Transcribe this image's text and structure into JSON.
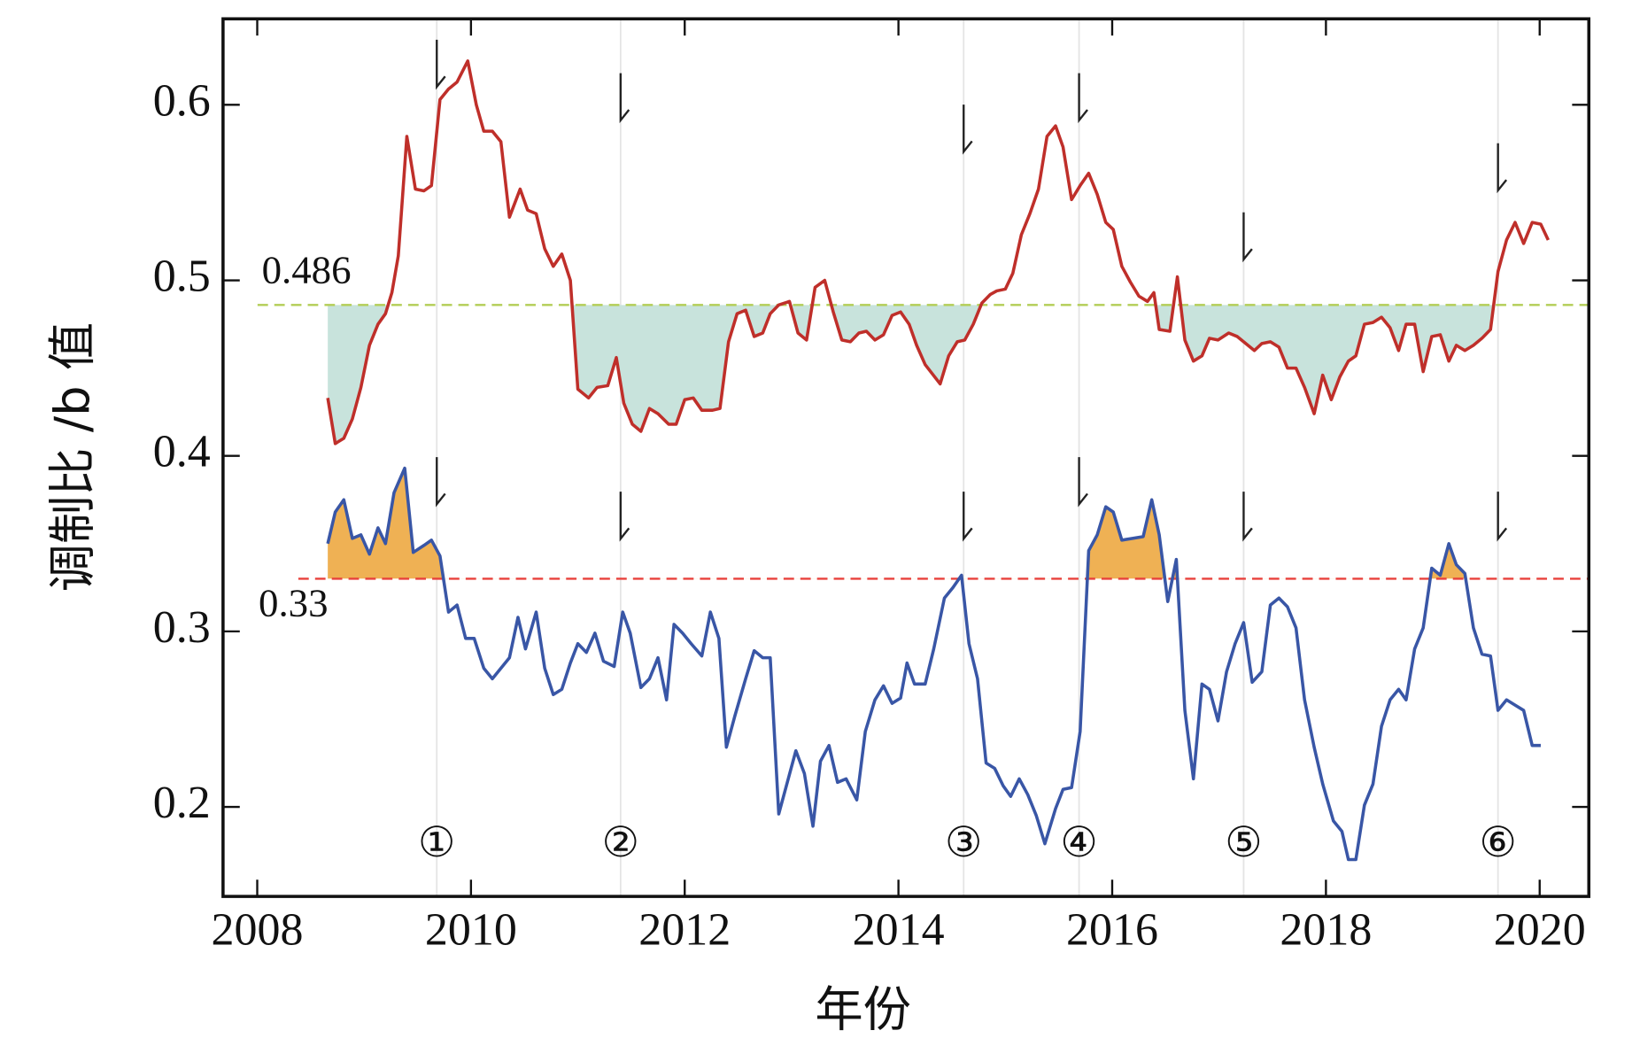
{
  "chart_data": {
    "type": "line",
    "xlabel": "年份",
    "ylabel": "调制比 /b 值",
    "xlim": [
      2007.68,
      2020.46
    ],
    "xticks": [
      2008,
      2010,
      2012,
      2014,
      2016,
      2018,
      2020
    ],
    "ylim": [
      0.149,
      0.649
    ],
    "yticks": [
      0.2,
      0.3,
      0.4,
      0.5,
      0.6
    ],
    "series": [
      {
        "color": "#bf2f2a",
        "x": [
          2008.66,
          2008.73,
          2008.81,
          2008.89,
          2008.97,
          2009.05,
          2009.13,
          2009.2,
          2009.26,
          2009.32,
          2009.4,
          2009.48,
          2009.56,
          2009.63,
          2009.71,
          2009.79,
          2009.87,
          2009.97,
          2010.05,
          2010.12,
          2010.2,
          2010.28,
          2010.36,
          2010.46,
          2010.53,
          2010.61,
          2010.69,
          2010.77,
          2010.85,
          2010.93,
          2011.0,
          2011.1,
          2011.18,
          2011.28,
          2011.36,
          2011.43,
          2011.51,
          2011.59,
          2011.67,
          2011.75,
          2011.85,
          2011.92,
          2012.0,
          2012.08,
          2012.16,
          2012.26,
          2012.33,
          2012.41,
          2012.49,
          2012.57,
          2012.65,
          2012.73,
          2012.8,
          2012.88,
          2012.98,
          2013.06,
          2013.14,
          2013.22,
          2013.31,
          2013.39,
          2013.47,
          2013.55,
          2013.63,
          2013.7,
          2013.78,
          2013.86,
          2013.94,
          2014.02,
          2014.1,
          2014.17,
          2014.25,
          2014.39,
          2014.47,
          2014.55,
          2014.62,
          2014.7,
          2014.78,
          2014.86,
          2014.92,
          2015.0,
          2015.07,
          2015.15,
          2015.23,
          2015.31,
          2015.39,
          2015.47,
          2015.54,
          2015.62,
          2015.7,
          2015.78,
          2015.86,
          2015.94,
          2016.01,
          2016.09,
          2016.17,
          2016.25,
          2016.33,
          2016.39,
          2016.44,
          2016.54,
          2016.61,
          2016.68,
          2016.76,
          2016.84,
          2016.91,
          2016.99,
          2017.09,
          2017.17,
          2017.25,
          2017.33,
          2017.4,
          2017.48,
          2017.56,
          2017.64,
          2017.72,
          2017.8,
          2017.89,
          2017.97,
          2018.05,
          2018.13,
          2018.21,
          2018.28,
          2018.36,
          2018.44,
          2018.52,
          2018.6,
          2018.68,
          2018.75,
          2018.83,
          2018.91,
          2018.99,
          2019.07,
          2019.15,
          2019.22,
          2019.3,
          2019.38,
          2019.46,
          2019.54,
          2019.61,
          2019.69,
          2019.77,
          2019.85,
          2019.93,
          2020.01,
          2020.08
        ],
        "values": [
          0.433,
          0.407,
          0.41,
          0.421,
          0.439,
          0.463,
          0.475,
          0.481,
          0.493,
          0.514,
          0.582,
          0.552,
          0.551,
          0.554,
          0.603,
          0.609,
          0.613,
          0.625,
          0.6,
          0.585,
          0.585,
          0.579,
          0.536,
          0.552,
          0.54,
          0.538,
          0.518,
          0.508,
          0.515,
          0.5,
          0.438,
          0.433,
          0.439,
          0.44,
          0.456,
          0.43,
          0.418,
          0.414,
          0.427,
          0.424,
          0.418,
          0.418,
          0.432,
          0.433,
          0.426,
          0.426,
          0.427,
          0.465,
          0.481,
          0.483,
          0.468,
          0.47,
          0.481,
          0.486,
          0.488,
          0.47,
          0.466,
          0.496,
          0.5,
          0.482,
          0.466,
          0.465,
          0.47,
          0.471,
          0.466,
          0.469,
          0.48,
          0.482,
          0.475,
          0.463,
          0.452,
          0.441,
          0.457,
          0.465,
          0.466,
          0.475,
          0.487,
          0.492,
          0.494,
          0.495,
          0.504,
          0.526,
          0.538,
          0.552,
          0.582,
          0.588,
          0.576,
          0.546,
          0.554,
          0.561,
          0.549,
          0.533,
          0.529,
          0.508,
          0.499,
          0.491,
          0.488,
          0.493,
          0.472,
          0.471,
          0.502,
          0.466,
          0.454,
          0.457,
          0.467,
          0.466,
          0.47,
          0.468,
          0.464,
          0.46,
          0.464,
          0.465,
          0.462,
          0.45,
          0.45,
          0.439,
          0.424,
          0.446,
          0.432,
          0.445,
          0.454,
          0.457,
          0.475,
          0.476,
          0.479,
          0.473,
          0.46,
          0.475,
          0.475,
          0.448,
          0.468,
          0.469,
          0.454,
          0.463,
          0.46,
          0.463,
          0.467,
          0.472,
          0.505,
          0.523,
          0.533,
          0.521,
          0.533,
          0.532,
          0.523
        ]
      },
      {
        "color": "#3956a6",
        "x": [
          2008.66,
          2008.73,
          2008.81,
          2008.89,
          2008.97,
          2009.05,
          2009.13,
          2009.2,
          2009.28,
          2009.38,
          2009.46,
          2009.56,
          2009.63,
          2009.71,
          2009.79,
          2009.87,
          2009.95,
          2010.03,
          2010.12,
          2010.2,
          2010.28,
          2010.36,
          2010.44,
          2010.51,
          2010.61,
          2010.69,
          2010.77,
          2010.85,
          2010.93,
          2011.0,
          2011.08,
          2011.16,
          2011.24,
          2011.34,
          2011.42,
          2011.49,
          2011.59,
          2011.67,
          2011.75,
          2011.83,
          2011.9,
          2011.98,
          2012.06,
          2012.16,
          2012.24,
          2012.32,
          2012.39,
          2012.47,
          2012.57,
          2012.65,
          2012.73,
          2012.8,
          2012.88,
          2012.96,
          2013.04,
          2013.12,
          2013.2,
          2013.27,
          2013.35,
          2013.43,
          2013.51,
          2013.61,
          2013.69,
          2013.78,
          2013.86,
          2013.94,
          2014.02,
          2014.08,
          2014.15,
          2014.25,
          2014.33,
          2014.43,
          2014.51,
          2014.59,
          2014.66,
          2014.74,
          2014.82,
          2014.9,
          2014.98,
          2015.05,
          2015.13,
          2015.21,
          2015.29,
          2015.37,
          2015.47,
          2015.54,
          2015.62,
          2015.7,
          2015.78,
          2015.86,
          2015.94,
          2016.01,
          2016.09,
          2016.19,
          2016.29,
          2016.37,
          2016.44,
          2016.52,
          2016.6,
          2016.68,
          2016.76,
          2016.84,
          2016.91,
          2016.99,
          2017.07,
          2017.15,
          2017.23,
          2017.31,
          2017.4,
          2017.48,
          2017.56,
          2017.64,
          2017.72,
          2017.8,
          2017.89,
          2017.97,
          2018.07,
          2018.15,
          2018.21,
          2018.28,
          2018.36,
          2018.44,
          2018.52,
          2018.6,
          2018.68,
          2018.75,
          2018.83,
          2018.91,
          2018.99,
          2019.07,
          2019.15,
          2019.22,
          2019.3,
          2019.38,
          2019.46,
          2019.54,
          2019.61,
          2019.69,
          2019.77,
          2019.85,
          2019.93,
          2020.01
        ],
        "values": [
          0.35,
          0.368,
          0.375,
          0.353,
          0.355,
          0.344,
          0.359,
          0.35,
          0.379,
          0.393,
          0.345,
          0.349,
          0.352,
          0.343,
          0.311,
          0.315,
          0.296,
          0.296,
          0.279,
          0.273,
          0.279,
          0.285,
          0.308,
          0.29,
          0.311,
          0.279,
          0.264,
          0.267,
          0.282,
          0.293,
          0.288,
          0.299,
          0.283,
          0.28,
          0.311,
          0.299,
          0.268,
          0.273,
          0.285,
          0.261,
          0.304,
          0.299,
          0.293,
          0.286,
          0.311,
          0.296,
          0.234,
          0.252,
          0.273,
          0.289,
          0.285,
          0.285,
          0.196,
          0.214,
          0.232,
          0.219,
          0.189,
          0.226,
          0.235,
          0.214,
          0.216,
          0.204,
          0.243,
          0.261,
          0.269,
          0.259,
          0.262,
          0.282,
          0.27,
          0.27,
          0.29,
          0.319,
          0.325,
          0.332,
          0.293,
          0.273,
          0.225,
          0.222,
          0.212,
          0.206,
          0.216,
          0.207,
          0.195,
          0.179,
          0.199,
          0.21,
          0.211,
          0.243,
          0.346,
          0.355,
          0.371,
          0.368,
          0.352,
          0.353,
          0.354,
          0.375,
          0.355,
          0.317,
          0.341,
          0.255,
          0.216,
          0.27,
          0.267,
          0.249,
          0.277,
          0.293,
          0.305,
          0.271,
          0.277,
          0.315,
          0.319,
          0.314,
          0.302,
          0.261,
          0.234,
          0.213,
          0.192,
          0.186,
          0.17,
          0.17,
          0.201,
          0.213,
          0.246,
          0.261,
          0.267,
          0.261,
          0.29,
          0.302,
          0.336,
          0.332,
          0.35,
          0.338,
          0.333,
          0.302,
          0.287,
          0.286,
          0.255,
          0.261,
          0.258,
          0.255,
          0.235,
          0.235
        ]
      }
    ],
    "reference_lines": [
      {
        "value": 0.486,
        "color": "#b3cd55",
        "fill": "#c8e3dc",
        "side": "below",
        "series": 0
      },
      {
        "value": 0.33,
        "color": "#e8413c",
        "fill": "#efb154",
        "side": "above",
        "series": 1
      }
    ],
    "events": [
      {
        "x": 2009.68,
        "label": "①"
      },
      {
        "x": 2011.4,
        "label": "②"
      },
      {
        "x": 2014.61,
        "label": "③"
      },
      {
        "x": 2015.69,
        "label": "④"
      },
      {
        "x": 2017.23,
        "label": "⑤"
      },
      {
        "x": 2019.61,
        "label": "⑥"
      }
    ]
  }
}
